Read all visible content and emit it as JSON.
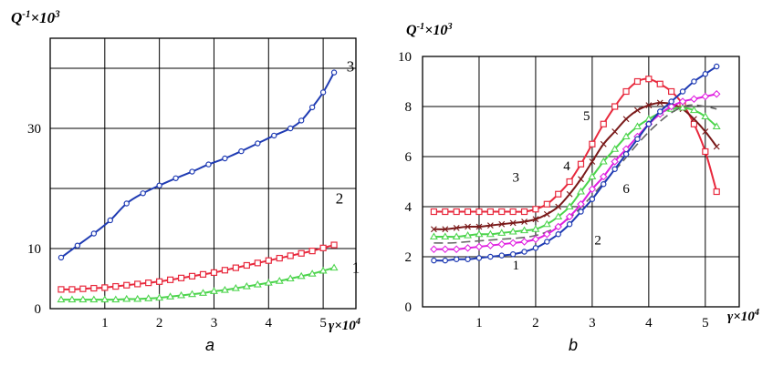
{
  "chart_data": [
    {
      "type": "line",
      "panel_label": "a",
      "ylabel_main": "Q",
      "ylabel_sup1": "-1",
      "ylabel_mid": "×10",
      "ylabel_sup2": "3",
      "xlabel_main": "γ×10",
      "xlabel_sup": "4",
      "xlim": [
        0,
        5.6
      ],
      "x_ticks": [
        1,
        2,
        3,
        4,
        5
      ],
      "y_ticks": [
        {
          "value": 0,
          "label": "0"
        },
        {
          "value": 10,
          "label": "10"
        },
        {
          "value": 30,
          "label": "30"
        }
      ],
      "y_grid": [
        0,
        10,
        20,
        30,
        40
      ],
      "ylim": [
        0,
        45
      ],
      "grid": true,
      "series": [
        {
          "name": "3",
          "color": "#1f3bb3",
          "marker": "circle",
          "x": [
            0.2,
            0.5,
            0.8,
            1.1,
            1.4,
            1.7,
            2.0,
            2.3,
            2.6,
            2.9,
            3.2,
            3.5,
            3.8,
            4.1,
            4.4,
            4.6,
            4.8,
            5.0,
            5.2
          ],
          "y": [
            8.5,
            10.5,
            12.5,
            14.7,
            17.5,
            19.2,
            20.5,
            21.7,
            22.8,
            24.0,
            25.0,
            26.2,
            27.5,
            28.8,
            30.0,
            31.3,
            33.5,
            36.0,
            39.3
          ]
        },
        {
          "name": "2",
          "color": "#e8293d",
          "marker": "square",
          "x": [
            0.2,
            0.4,
            0.6,
            0.8,
            1.0,
            1.2,
            1.4,
            1.6,
            1.8,
            2.0,
            2.2,
            2.4,
            2.6,
            2.8,
            3.0,
            3.2,
            3.4,
            3.6,
            3.8,
            4.0,
            4.2,
            4.4,
            4.6,
            4.8,
            5.0,
            5.2
          ],
          "y": [
            3.2,
            3.2,
            3.3,
            3.4,
            3.5,
            3.7,
            3.9,
            4.1,
            4.3,
            4.5,
            4.8,
            5.1,
            5.4,
            5.7,
            6.0,
            6.4,
            6.8,
            7.2,
            7.6,
            8.0,
            8.4,
            8.8,
            9.2,
            9.6,
            10.1,
            10.6
          ]
        },
        {
          "name": "1",
          "color": "#4cd44c",
          "marker": "triangle",
          "x": [
            0.2,
            0.4,
            0.6,
            0.8,
            1.0,
            1.2,
            1.4,
            1.6,
            1.8,
            2.0,
            2.2,
            2.4,
            2.6,
            2.8,
            3.0,
            3.2,
            3.4,
            3.6,
            3.8,
            4.0,
            4.2,
            4.4,
            4.6,
            4.8,
            5.0,
            5.2
          ],
          "y": [
            1.5,
            1.5,
            1.5,
            1.5,
            1.5,
            1.5,
            1.6,
            1.6,
            1.7,
            1.8,
            2.0,
            2.2,
            2.4,
            2.6,
            2.9,
            3.1,
            3.4,
            3.7,
            4.0,
            4.3,
            4.6,
            5.0,
            5.4,
            5.8,
            6.3,
            6.8
          ]
        }
      ],
      "annotations": [
        {
          "text": "3",
          "x": 5.5,
          "y": 39.5
        },
        {
          "text": "2",
          "x": 5.3,
          "y": 17.5
        },
        {
          "text": "1",
          "x": 5.6,
          "y": 6.0
        }
      ]
    },
    {
      "type": "line",
      "panel_label": "b",
      "ylabel_main": "Q",
      "ylabel_sup1": "-1",
      "ylabel_mid": "×10",
      "ylabel_sup2": "3",
      "xlabel_main": "γ×10",
      "xlabel_sup": "4",
      "xlim": [
        0,
        5.6
      ],
      "x_ticks": [
        1,
        2,
        3,
        4,
        5
      ],
      "y_ticks": [
        {
          "value": 0,
          "label": "0"
        },
        {
          "value": 2,
          "label": "2"
        },
        {
          "value": 4,
          "label": "4"
        },
        {
          "value": 6,
          "label": "6"
        },
        {
          "value": 8,
          "label": "8"
        },
        {
          "value": 10,
          "label": "10"
        }
      ],
      "y_grid": [
        0,
        2,
        4,
        6,
        8,
        10
      ],
      "ylim": [
        0,
        10
      ],
      "grid": true,
      "series": [
        {
          "name": "3",
          "color": "#e8293d",
          "marker": "square",
          "x": [
            0.2,
            0.4,
            0.6,
            0.8,
            1.0,
            1.2,
            1.4,
            1.6,
            1.8,
            2.0,
            2.2,
            2.4,
            2.6,
            2.8,
            3.0,
            3.2,
            3.4,
            3.6,
            3.8,
            4.0,
            4.2,
            4.4,
            4.6,
            4.8,
            5.0,
            5.2
          ],
          "y": [
            3.8,
            3.8,
            3.8,
            3.8,
            3.8,
            3.8,
            3.8,
            3.8,
            3.8,
            3.9,
            4.1,
            4.5,
            5.0,
            5.7,
            6.5,
            7.3,
            8.0,
            8.6,
            9.0,
            9.1,
            8.9,
            8.6,
            8.1,
            7.3,
            6.2,
            4.6
          ]
        },
        {
          "name": "4",
          "color": "#7a1a1a",
          "marker": "x",
          "x": [
            0.2,
            0.4,
            0.6,
            0.8,
            1.0,
            1.2,
            1.4,
            1.6,
            1.8,
            2.0,
            2.2,
            2.4,
            2.6,
            2.8,
            3.0,
            3.2,
            3.4,
            3.6,
            3.8,
            4.0,
            4.2,
            4.4,
            4.6,
            4.8,
            5.0,
            5.2
          ],
          "y": [
            3.1,
            3.1,
            3.15,
            3.2,
            3.2,
            3.25,
            3.3,
            3.35,
            3.4,
            3.5,
            3.7,
            4.0,
            4.5,
            5.1,
            5.8,
            6.5,
            7.0,
            7.5,
            7.85,
            8.05,
            8.15,
            8.1,
            7.9,
            7.5,
            7.0,
            6.4
          ]
        },
        {
          "name": "5",
          "color": "#4cd44c",
          "marker": "triangle",
          "x": [
            0.2,
            0.4,
            0.6,
            0.8,
            1.0,
            1.2,
            1.4,
            1.6,
            1.8,
            2.0,
            2.2,
            2.4,
            2.6,
            2.8,
            3.0,
            3.2,
            3.4,
            3.6,
            3.8,
            4.0,
            4.2,
            4.4,
            4.6,
            4.8,
            5.0,
            5.2
          ],
          "y": [
            2.8,
            2.8,
            2.8,
            2.85,
            2.9,
            2.9,
            2.95,
            3.0,
            3.05,
            3.1,
            3.3,
            3.6,
            4.0,
            4.6,
            5.2,
            5.8,
            6.3,
            6.8,
            7.2,
            7.5,
            7.75,
            7.9,
            7.95,
            7.85,
            7.6,
            7.2
          ]
        },
        {
          "name": "6",
          "color": "#666666",
          "marker": "dash",
          "x": [
            0.2,
            0.5,
            0.8,
            1.1,
            1.4,
            1.7,
            2.0,
            2.3,
            2.6,
            2.9,
            3.2,
            3.5,
            3.8,
            4.1,
            4.4,
            4.7,
            5.0,
            5.2
          ],
          "y": [
            2.55,
            2.55,
            2.6,
            2.65,
            2.7,
            2.75,
            2.85,
            3.1,
            3.55,
            4.2,
            4.95,
            5.7,
            6.5,
            7.2,
            7.75,
            8.05,
            8.0,
            7.9
          ]
        },
        {
          "name": "2",
          "color": "#e020e0",
          "marker": "diamond",
          "x": [
            0.2,
            0.4,
            0.6,
            0.8,
            1.0,
            1.2,
            1.4,
            1.6,
            1.8,
            2.0,
            2.2,
            2.4,
            2.6,
            2.8,
            3.0,
            3.2,
            3.4,
            3.6,
            3.8,
            4.0,
            4.2,
            4.4,
            4.6,
            4.8,
            5.0,
            5.2
          ],
          "y": [
            2.3,
            2.3,
            2.3,
            2.35,
            2.4,
            2.45,
            2.5,
            2.55,
            2.6,
            2.7,
            2.9,
            3.2,
            3.6,
            4.1,
            4.7,
            5.2,
            5.8,
            6.3,
            6.8,
            7.3,
            7.7,
            8.0,
            8.2,
            8.3,
            8.4,
            8.5
          ]
        },
        {
          "name": "1",
          "color": "#1f3bb3",
          "marker": "circle",
          "x": [
            0.2,
            0.4,
            0.6,
            0.8,
            1.0,
            1.2,
            1.4,
            1.6,
            1.8,
            2.0,
            2.2,
            2.4,
            2.6,
            2.8,
            3.0,
            3.2,
            3.4,
            3.6,
            3.8,
            4.0,
            4.2,
            4.4,
            4.6,
            4.8,
            5.0,
            5.2
          ],
          "y": [
            1.85,
            1.85,
            1.9,
            1.9,
            1.95,
            2.0,
            2.05,
            2.1,
            2.2,
            2.35,
            2.6,
            2.9,
            3.3,
            3.8,
            4.3,
            4.9,
            5.5,
            6.1,
            6.7,
            7.3,
            7.8,
            8.2,
            8.6,
            9.0,
            9.3,
            9.6
          ]
        }
      ],
      "annotations": [
        {
          "text": "3",
          "x": 1.65,
          "y": 5.0
        },
        {
          "text": "4",
          "x": 2.55,
          "y": 5.45
        },
        {
          "text": "5",
          "x": 2.9,
          "y": 7.45
        },
        {
          "text": "6",
          "x": 3.6,
          "y": 4.55
        },
        {
          "text": "2",
          "x": 3.1,
          "y": 2.5
        },
        {
          "text": "1",
          "x": 1.65,
          "y": 1.5
        }
      ]
    }
  ]
}
